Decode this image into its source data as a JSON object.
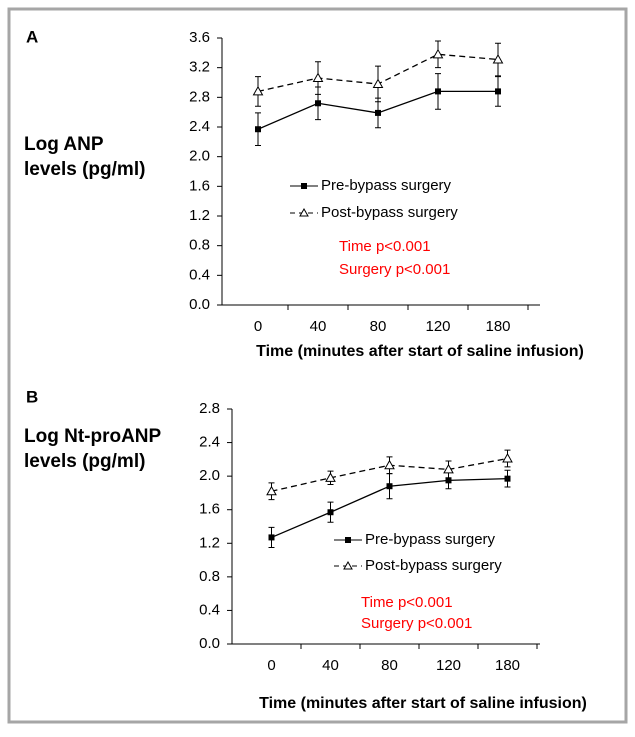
{
  "chart_data": [
    {
      "type": "line",
      "panel": "A",
      "ylabel": [
        "Log ANP",
        "levels (pg/ml)"
      ],
      "xlabel": "Time (minutes after start of saline infusion)",
      "categories": [
        "0",
        "40",
        "80",
        "120",
        "180"
      ],
      "series": [
        {
          "name": "Pre-bypass surgery",
          "color": "#000000",
          "dash": false,
          "marker": "square",
          "values": [
            2.37,
            2.72,
            2.59,
            2.88,
            2.88
          ],
          "errors": [
            0.22,
            0.22,
            0.2,
            0.24,
            0.2
          ]
        },
        {
          "name": "Post-bypass surgery",
          "color": "#000000",
          "dash": true,
          "marker": "triangle",
          "values": [
            2.88,
            3.06,
            2.98,
            3.38,
            3.31
          ],
          "errors": [
            0.2,
            0.22,
            0.24,
            0.18,
            0.22
          ]
        }
      ],
      "ylim": [
        0,
        3.6
      ],
      "yticks": [
        {
          "value": 0,
          "label": "0.0"
        },
        0.4,
        0.8,
        1.2,
        1.6,
        {
          "value": 2,
          "label": "2.0"
        },
        2.4,
        2.8,
        3.2,
        3.6
      ],
      "annotations": [
        "Time p<0.001",
        "Surgery p<0.001"
      ],
      "annotation_color": "#ff0000"
    },
    {
      "type": "line",
      "panel": "B",
      "ylabel": [
        "Log Nt-proANP",
        "levels (pg/ml)"
      ],
      "xlabel": "Time (minutes after start of saline infusion)",
      "categories": [
        "0",
        "40",
        "80",
        "120",
        "180"
      ],
      "series": [
        {
          "name": "Pre-bypass surgery",
          "color": "#000000",
          "dash": false,
          "marker": "square",
          "values": [
            1.27,
            1.57,
            1.88,
            1.95,
            1.97
          ],
          "errors": [
            0.12,
            0.12,
            0.15,
            0.1,
            0.1
          ]
        },
        {
          "name": "Post-bypass surgery",
          "color": "#000000",
          "dash": true,
          "marker": "triangle",
          "values": [
            1.82,
            1.98,
            2.13,
            2.08,
            2.21
          ],
          "errors": [
            0.1,
            0.08,
            0.1,
            0.1,
            0.1
          ]
        }
      ],
      "ylim": [
        0,
        2.8
      ],
      "yticks": [
        {
          "value": 0,
          "label": "0.0"
        },
        0.4,
        0.8,
        1.2,
        1.6,
        {
          "value": 2,
          "label": "2.0"
        },
        2.4,
        2.8
      ],
      "annotations": [
        "Time p<0.001",
        "Surgery p<0.001"
      ],
      "annotation_color": "#ff0000"
    }
  ]
}
